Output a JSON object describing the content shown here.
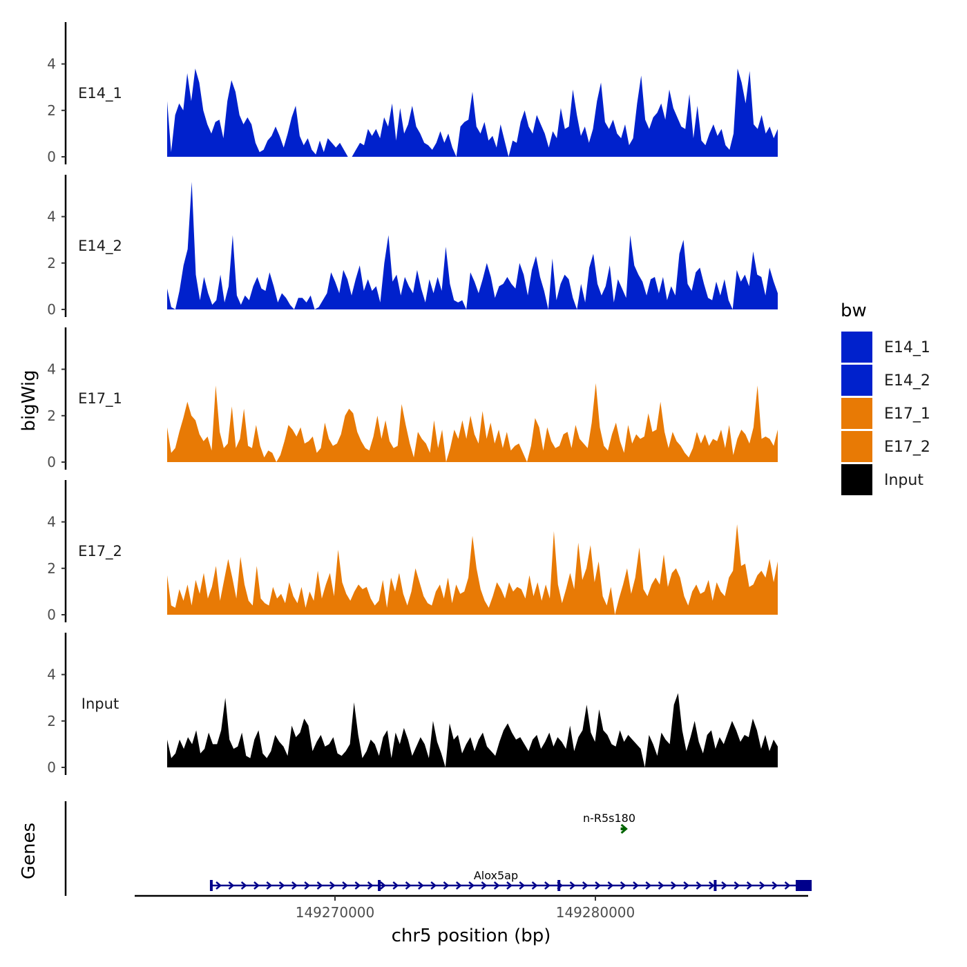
{
  "chart_data": {
    "type": "area",
    "title": "",
    "ylabel": "bigWig",
    "genes_label": "Genes",
    "xlabel": "chr5 position (bp)",
    "x_ticks": [
      149270000,
      149280000
    ],
    "x_tick_labels": [
      "149270000",
      "149280000"
    ],
    "y_ticks": [
      0,
      2,
      4
    ],
    "y_tick_labels": [
      "0",
      "2",
      "4"
    ],
    "ylim": [
      0,
      5.8
    ],
    "region": {
      "chrom": "chr5",
      "start": 149263000,
      "end": 149288500
    },
    "legend": {
      "title": "bw",
      "entries": [
        {
          "label": "E14_1",
          "color": "#0021cc"
        },
        {
          "label": "E14_2",
          "color": "#0021cc"
        },
        {
          "label": "E17_1",
          "color": "#e87a05"
        },
        {
          "label": "E17_2",
          "color": "#e87a05"
        },
        {
          "label": "Input",
          "color": "#000000"
        }
      ]
    },
    "series": [
      {
        "name": "E14_1",
        "color": "#0021cc",
        "values": [
          2.4,
          0.2,
          1.8,
          2.3,
          2.0,
          3.6,
          2.4,
          3.8,
          3.2,
          2.0,
          1.4,
          1.0,
          1.5,
          1.6,
          0.8,
          2.4,
          3.3,
          2.8,
          1.8,
          1.4,
          1.7,
          1.4,
          0.6,
          0.2,
          0.3,
          0.7,
          0.9,
          1.3,
          0.9,
          0.4,
          1.0,
          1.7,
          2.2,
          0.9,
          0.5,
          0.8,
          0.3,
          0.1,
          0.7,
          0.2,
          0.8,
          0.6,
          0.4,
          0.6,
          0.3,
          0.0,
          0.0,
          0.3,
          0.6,
          0.5,
          1.2,
          0.9,
          1.2,
          0.8,
          1.7,
          1.3,
          2.3,
          0.7,
          2.1,
          1.0,
          1.4,
          2.2,
          1.3,
          1.0,
          0.6,
          0.5,
          0.3,
          0.6,
          1.1,
          0.6,
          1.0,
          0.4,
          0.0,
          1.3,
          1.5,
          1.6,
          2.8,
          1.3,
          1.0,
          1.5,
          0.7,
          0.9,
          0.4,
          1.4,
          0.7,
          0.0,
          0.7,
          0.6,
          1.5,
          2.0,
          1.3,
          1.0,
          1.8,
          1.4,
          1.0,
          0.4,
          1.1,
          0.8,
          2.1,
          1.2,
          1.3,
          2.9,
          1.8,
          0.9,
          1.3,
          0.6,
          1.2,
          2.4,
          3.2,
          1.5,
          1.2,
          1.6,
          1.0,
          0.8,
          1.4,
          0.5,
          0.8,
          2.3,
          3.5,
          1.6,
          1.2,
          1.7,
          1.9,
          2.3,
          1.6,
          2.9,
          2.1,
          1.7,
          1.3,
          1.2,
          2.7,
          0.8,
          2.2,
          0.7,
          0.5,
          1.0,
          1.4,
          0.9,
          1.2,
          0.5,
          0.3,
          1.0,
          3.8,
          3.2,
          2.3,
          3.7,
          1.4,
          1.2,
          1.8,
          1.0,
          1.3,
          0.8,
          1.2
        ]
      },
      {
        "name": "E14_2",
        "color": "#0021cc",
        "values": [
          0.9,
          0.1,
          0.0,
          0.8,
          1.9,
          2.6,
          5.5,
          1.5,
          0.4,
          1.4,
          0.7,
          0.2,
          0.4,
          1.5,
          0.3,
          1.0,
          3.2,
          0.6,
          0.2,
          0.6,
          0.4,
          1.0,
          1.4,
          0.9,
          0.8,
          1.6,
          1.0,
          0.3,
          0.7,
          0.5,
          0.2,
          0.0,
          0.5,
          0.5,
          0.3,
          0.6,
          0.0,
          0.1,
          0.4,
          0.7,
          1.6,
          1.2,
          0.7,
          1.7,
          1.3,
          0.6,
          1.3,
          1.9,
          0.8,
          1.3,
          0.8,
          1.0,
          0.3,
          2.0,
          3.2,
          1.2,
          1.5,
          0.6,
          1.4,
          1.0,
          0.7,
          1.7,
          0.9,
          0.3,
          1.3,
          0.7,
          1.4,
          0.8,
          2.7,
          1.1,
          0.4,
          0.3,
          0.4,
          0.0,
          1.6,
          1.2,
          0.7,
          1.3,
          2.0,
          1.4,
          0.5,
          1.0,
          1.1,
          1.4,
          1.1,
          0.9,
          2.0,
          1.5,
          0.6,
          1.7,
          2.3,
          1.4,
          0.8,
          0.0,
          2.2,
          0.4,
          1.1,
          1.5,
          1.3,
          0.5,
          0.0,
          1.1,
          0.3,
          1.8,
          2.4,
          1.1,
          0.6,
          1.0,
          1.9,
          0.3,
          1.3,
          0.9,
          0.5,
          3.2,
          1.9,
          1.5,
          1.2,
          0.6,
          1.3,
          1.4,
          0.7,
          1.4,
          0.4,
          1.0,
          0.6,
          2.4,
          3.0,
          1.1,
          0.8,
          1.6,
          1.8,
          1.1,
          0.5,
          0.4,
          1.2,
          0.6,
          1.3,
          0.4,
          0.0,
          1.7,
          1.2,
          1.5,
          1.0,
          2.5,
          1.5,
          1.4,
          0.6,
          1.8,
          1.2,
          0.7
        ]
      },
      {
        "name": "E17_1",
        "color": "#e87a05",
        "values": [
          1.5,
          0.4,
          0.6,
          1.3,
          1.9,
          2.6,
          2.0,
          1.8,
          1.2,
          0.9,
          1.1,
          0.5,
          3.3,
          1.3,
          0.6,
          0.8,
          2.4,
          0.6,
          1.0,
          2.3,
          0.7,
          0.6,
          1.6,
          0.7,
          0.2,
          0.5,
          0.4,
          0.0,
          0.3,
          0.9,
          1.6,
          1.4,
          1.1,
          1.5,
          0.8,
          0.9,
          1.1,
          0.4,
          0.6,
          1.7,
          1.0,
          0.7,
          0.8,
          1.2,
          2.0,
          2.3,
          2.1,
          1.3,
          0.9,
          0.6,
          0.5,
          1.1,
          2.0,
          1.0,
          1.8,
          0.9,
          0.6,
          0.7,
          2.5,
          1.6,
          0.8,
          0.2,
          1.3,
          1.0,
          0.8,
          0.4,
          1.8,
          0.6,
          1.4,
          0.0,
          0.6,
          1.4,
          1.0,
          1.8,
          1.0,
          2.0,
          1.2,
          0.8,
          2.2,
          1.0,
          1.7,
          0.8,
          1.4,
          0.6,
          1.3,
          0.5,
          0.7,
          0.8,
          0.4,
          0.0,
          0.7,
          1.9,
          1.5,
          0.5,
          1.5,
          0.9,
          0.6,
          0.7,
          1.2,
          1.3,
          0.6,
          1.6,
          1.0,
          0.8,
          0.6,
          1.7,
          3.4,
          1.5,
          0.7,
          0.5,
          1.2,
          1.7,
          0.9,
          0.4,
          1.6,
          0.8,
          1.2,
          1.0,
          1.1,
          2.1,
          1.3,
          1.4,
          2.6,
          1.3,
          0.6,
          1.3,
          0.9,
          0.7,
          0.4,
          0.2,
          0.6,
          1.3,
          0.8,
          1.2,
          0.7,
          1.0,
          0.9,
          1.4,
          0.6,
          1.6,
          0.3,
          1.0,
          1.4,
          1.2,
          0.8,
          1.5,
          3.3,
          1.0,
          1.1,
          1.0,
          0.7,
          1.4
        ]
      },
      {
        "name": "E17_2",
        "color": "#e87a05",
        "values": [
          1.7,
          0.4,
          0.3,
          1.1,
          0.6,
          1.3,
          0.4,
          1.5,
          0.9,
          1.8,
          0.7,
          1.2,
          2.1,
          0.6,
          1.5,
          2.4,
          1.6,
          0.7,
          2.5,
          1.3,
          0.6,
          0.4,
          2.1,
          0.7,
          0.5,
          0.4,
          1.2,
          0.7,
          0.9,
          0.5,
          1.4,
          0.8,
          0.5,
          1.2,
          0.3,
          1.0,
          0.6,
          1.9,
          0.7,
          1.3,
          1.8,
          0.8,
          2.8,
          1.4,
          0.9,
          0.6,
          1.0,
          1.3,
          1.1,
          1.2,
          0.7,
          0.4,
          0.6,
          1.5,
          0.3,
          1.6,
          1.0,
          1.8,
          0.9,
          0.4,
          1.0,
          2.0,
          1.4,
          0.8,
          0.5,
          0.4,
          1.0,
          1.3,
          0.7,
          1.6,
          0.5,
          1.3,
          0.9,
          1.0,
          1.6,
          3.4,
          2.0,
          1.1,
          0.6,
          0.3,
          0.8,
          1.4,
          1.1,
          0.7,
          1.4,
          1.0,
          1.2,
          1.1,
          0.7,
          1.7,
          0.8,
          1.4,
          0.6,
          1.3,
          0.7,
          3.6,
          1.3,
          0.5,
          1.1,
          1.8,
          1.1,
          3.1,
          1.5,
          2.0,
          3.0,
          1.4,
          2.3,
          0.8,
          0.4,
          1.2,
          0.0,
          0.7,
          1.3,
          2.0,
          0.9,
          1.6,
          2.9,
          1.1,
          0.8,
          1.3,
          1.6,
          1.3,
          2.6,
          1.2,
          1.8,
          2.0,
          1.6,
          0.8,
          0.4,
          1.0,
          1.3,
          0.9,
          1.0,
          1.5,
          0.6,
          1.4,
          1.0,
          0.8,
          1.6,
          1.9,
          3.9,
          2.1,
          2.2,
          1.2,
          1.3,
          1.7,
          1.9,
          1.6,
          2.4,
          1.4,
          2.3
        ]
      },
      {
        "name": "Input",
        "color": "#000000",
        "values": [
          1.2,
          0.4,
          0.6,
          1.2,
          0.8,
          1.3,
          1.0,
          1.6,
          0.6,
          0.8,
          1.5,
          1.0,
          1.0,
          1.6,
          3.0,
          1.2,
          0.8,
          0.9,
          1.5,
          0.5,
          0.4,
          1.2,
          1.6,
          0.6,
          0.4,
          0.7,
          1.4,
          1.1,
          0.9,
          0.5,
          1.8,
          1.3,
          1.5,
          2.1,
          1.8,
          0.7,
          1.1,
          1.4,
          0.9,
          1.0,
          1.3,
          0.6,
          0.5,
          0.7,
          1.0,
          2.8,
          1.4,
          0.4,
          0.7,
          1.2,
          1.0,
          0.5,
          1.3,
          1.6,
          0.4,
          1.5,
          1.0,
          1.7,
          1.2,
          0.5,
          0.9,
          1.3,
          1.0,
          0.4,
          2.0,
          1.1,
          0.6,
          0.0,
          1.9,
          1.2,
          1.4,
          0.6,
          1.0,
          1.3,
          0.7,
          1.2,
          1.5,
          0.9,
          0.7,
          0.5,
          1.1,
          1.6,
          1.9,
          1.5,
          1.2,
          1.3,
          1.0,
          0.7,
          1.2,
          1.4,
          0.8,
          1.1,
          1.5,
          0.9,
          1.3,
          1.1,
          0.8,
          1.8,
          0.7,
          1.3,
          1.6,
          2.7,
          1.5,
          1.1,
          2.5,
          1.6,
          1.4,
          1.0,
          0.9,
          1.6,
          1.1,
          1.4,
          1.2,
          1.0,
          0.8,
          0.0,
          1.4,
          1.0,
          0.5,
          1.5,
          1.2,
          1.0,
          2.7,
          3.2,
          1.6,
          0.7,
          1.3,
          2.0,
          1.1,
          0.6,
          1.4,
          1.6,
          0.8,
          1.3,
          1.0,
          1.5,
          2.0,
          1.6,
          1.1,
          1.4,
          1.3,
          2.1,
          1.6,
          0.8,
          1.4,
          0.7,
          1.2,
          0.9
        ]
      }
    ],
    "genes": [
      {
        "name": "Alox5ap",
        "start": 149265200,
        "end": 149288200,
        "strand": "+",
        "color": "#00008b",
        "exons": [
          149265250,
          149271700,
          149278600,
          149284600
        ],
        "last_exon": [
          149287800,
          149288200
        ]
      },
      {
        "name": "n-R5s180",
        "start": 149281050,
        "end": 149281200,
        "strand": "+",
        "color": "#006400"
      }
    ]
  }
}
